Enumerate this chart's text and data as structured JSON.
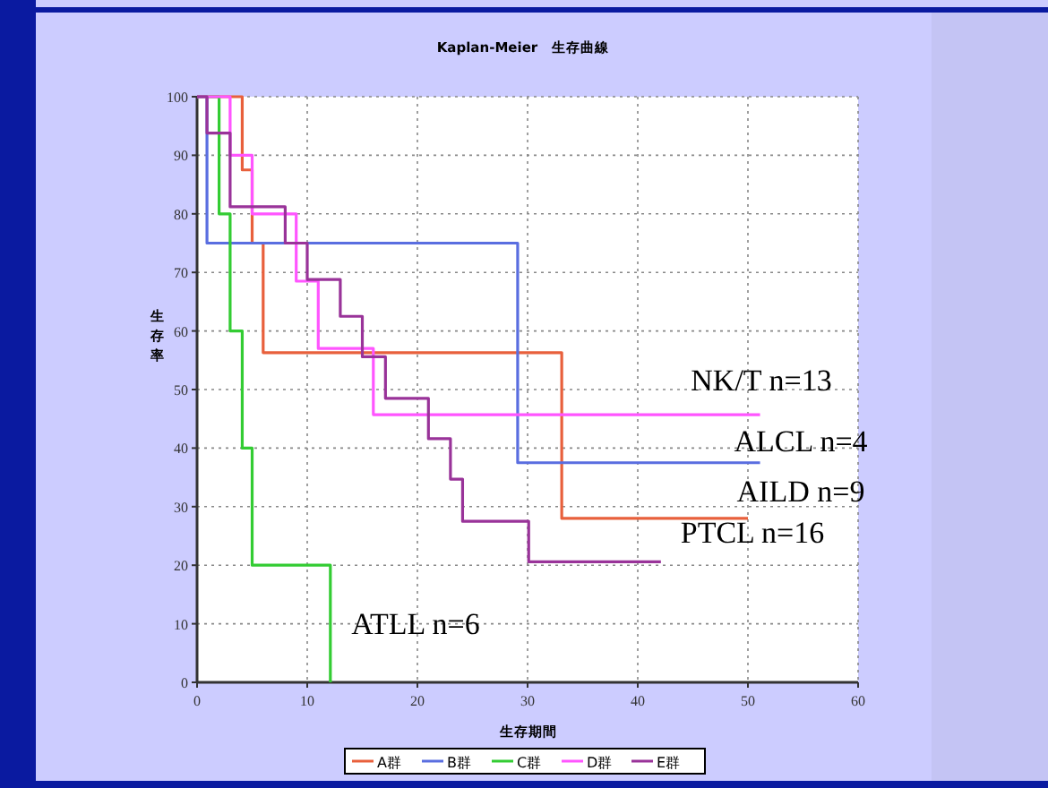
{
  "chart_data": {
    "type": "step",
    "title": "Kaplan-Meier　生存曲線",
    "xlabel": "生存期間",
    "ylabel": "生存率",
    "xlim": [
      0,
      60
    ],
    "ylim": [
      0,
      100
    ],
    "xticks": [
      0,
      10,
      20,
      30,
      40,
      50,
      60
    ],
    "yticks": [
      0,
      10,
      20,
      30,
      40,
      50,
      60,
      70,
      80,
      90,
      100
    ],
    "grid": true,
    "legend": "bottom",
    "series": [
      {
        "name": "A群",
        "color": "#e8603c",
        "x": [
          0,
          4.1,
          5,
          6,
          33.1,
          50
        ],
        "values": [
          100,
          87.5,
          75,
          56.3,
          28,
          28
        ]
      },
      {
        "name": "B群",
        "color": "#5a6ee0",
        "x": [
          0,
          0.9,
          29.1,
          51.1
        ],
        "values": [
          100,
          75,
          37.5,
          37.5
        ]
      },
      {
        "name": "C群",
        "color": "#33cc33",
        "x": [
          0,
          2,
          3,
          4.1,
          5,
          12.1
        ],
        "values": [
          100,
          80,
          60,
          40,
          20,
          0
        ]
      },
      {
        "name": "D群",
        "color": "#ff55ff",
        "x": [
          0,
          3,
          5,
          9,
          11,
          16,
          51.1
        ],
        "values": [
          100,
          90,
          80,
          68.5,
          57,
          45.7,
          45.7
        ]
      },
      {
        "name": "E群",
        "color": "#993399",
        "x": [
          0,
          0.9,
          3,
          8,
          10,
          13,
          15,
          17.1,
          21,
          23,
          24.1,
          30.1,
          42.1
        ],
        "values": [
          100,
          93.8,
          81.2,
          75,
          68.8,
          62.5,
          55.6,
          48.5,
          41.6,
          34.7,
          27.5,
          20.6,
          20.6
        ]
      }
    ],
    "annotations": [
      "NK/T n=13",
      "ALCL n=4",
      "AILD n=9",
      "PTCL n=16",
      "ATLL n=6"
    ]
  }
}
